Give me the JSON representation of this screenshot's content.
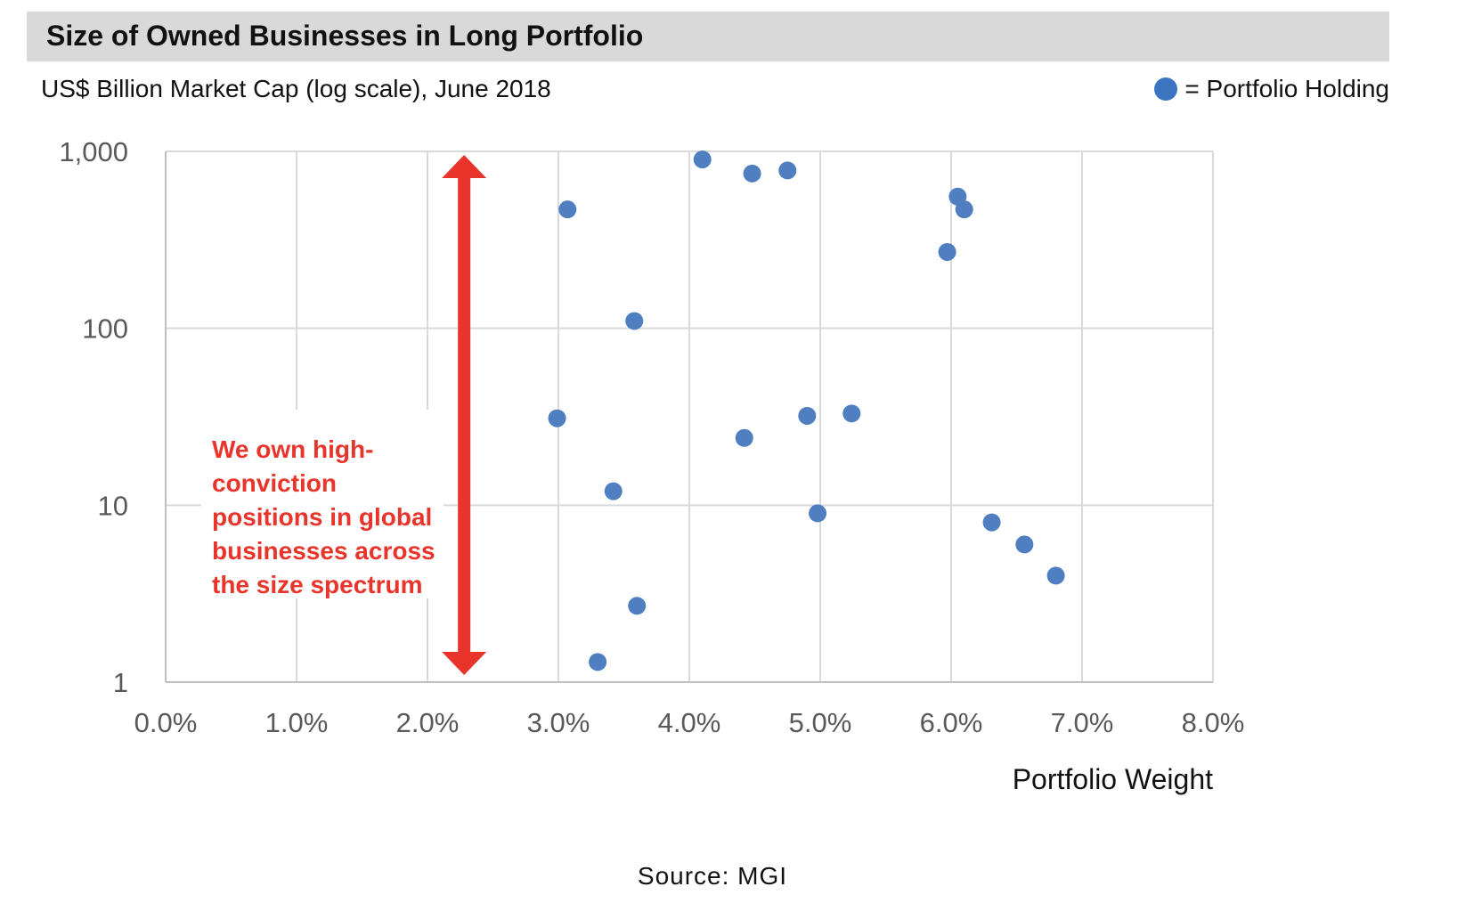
{
  "title": "Size of Owned Businesses in Long Portfolio",
  "subtitle": "US$ Billion Market Cap (log scale), June 2018",
  "legend_label": "= Portfolio Holding",
  "source": "Source: MGI",
  "annotation_lines": [
    "We own high-",
    "conviction",
    "positions in global",
    "businesses across",
    "the size spectrum"
  ],
  "colors": {
    "point": "#4f7fc0",
    "arrow": "#e8342a",
    "grid": "#d9d9d9",
    "title_bar": "#d9d9d9"
  },
  "chart_data": {
    "type": "scatter",
    "title": "Size of Owned Businesses in Long Portfolio",
    "subtitle": "US$ Billion Market Cap (log scale), June 2018",
    "xlabel": "Portfolio Weight",
    "ylabel": "",
    "xlim": [
      0,
      8
    ],
    "ylim": [
      1,
      1000
    ],
    "y_scale": "log",
    "grid": true,
    "legend": "top-right",
    "x_tick_labels": [
      "0.0%",
      "1.0%",
      "2.0%",
      "3.0%",
      "4.0%",
      "5.0%",
      "6.0%",
      "7.0%",
      "8.0%"
    ],
    "y_tick_labels": [
      "1",
      "10",
      "100",
      "1,000"
    ],
    "series": [
      {
        "name": "Portfolio Holding",
        "points": [
          {
            "x": 4.1,
            "y": 900
          },
          {
            "x": 4.48,
            "y": 750
          },
          {
            "x": 4.75,
            "y": 780
          },
          {
            "x": 3.07,
            "y": 470
          },
          {
            "x": 6.05,
            "y": 555
          },
          {
            "x": 6.1,
            "y": 470
          },
          {
            "x": 5.97,
            "y": 270
          },
          {
            "x": 3.58,
            "y": 110
          },
          {
            "x": 2.99,
            "y": 31
          },
          {
            "x": 4.9,
            "y": 32
          },
          {
            "x": 5.24,
            "y": 33
          },
          {
            "x": 4.42,
            "y": 24
          },
          {
            "x": 3.42,
            "y": 12
          },
          {
            "x": 4.98,
            "y": 9
          },
          {
            "x": 6.31,
            "y": 8
          },
          {
            "x": 6.56,
            "y": 6
          },
          {
            "x": 6.8,
            "y": 4
          },
          {
            "x": 3.6,
            "y": 2.7
          },
          {
            "x": 3.3,
            "y": 1.3
          }
        ]
      }
    ],
    "annotation": {
      "text": "We own high-conviction positions in global businesses across the size spectrum",
      "arrow_range": [
        1,
        1000
      ],
      "arrow_x": 2.28
    }
  }
}
